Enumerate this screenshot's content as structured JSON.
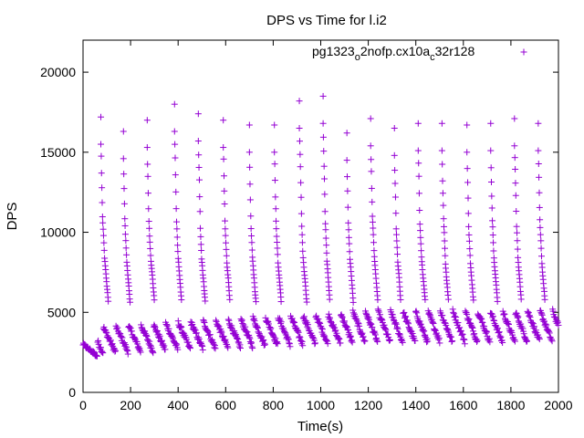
{
  "chart_data": {
    "type": "scatter",
    "title": "DPS vs Time for l.i2",
    "xlabel": "Time(s)",
    "ylabel": "DPS",
    "xlim": [
      0,
      2000
    ],
    "ylim": [
      0,
      22000
    ],
    "xticks": [
      0,
      200,
      400,
      600,
      800,
      1000,
      1200,
      1400,
      1600,
      1800,
      2000
    ],
    "yticks": [
      0,
      5000,
      10000,
      15000,
      20000
    ],
    "grid": false,
    "legend_position": "top-right",
    "marker": "+",
    "series": [
      {
        "name_parts": {
          "a": "pg1323",
          "b": "o",
          "c": "2nofp.cx10a",
          "d": "c",
          "e": "32r128"
        },
        "color": "#9400d3",
        "tops": [
          {
            "x": 75,
            "y": 17200
          },
          {
            "x": 170,
            "y": 16300
          },
          {
            "x": 270,
            "y": 17000
          },
          {
            "x": 385,
            "y": 18000
          },
          {
            "x": 485,
            "y": 17400
          },
          {
            "x": 590,
            "y": 17000
          },
          {
            "x": 700,
            "y": 16700
          },
          {
            "x": 805,
            "y": 16700
          },
          {
            "x": 910,
            "y": 18200
          },
          {
            "x": 1010,
            "y": 18500
          },
          {
            "x": 1110,
            "y": 16200
          },
          {
            "x": 1210,
            "y": 17100
          },
          {
            "x": 1310,
            "y": 16500
          },
          {
            "x": 1410,
            "y": 16800
          },
          {
            "x": 1510,
            "y": 16800
          },
          {
            "x": 1615,
            "y": 16700
          },
          {
            "x": 1715,
            "y": 16800
          },
          {
            "x": 1815,
            "y": 17100
          },
          {
            "x": 1915,
            "y": 16800
          }
        ]
      }
    ]
  }
}
